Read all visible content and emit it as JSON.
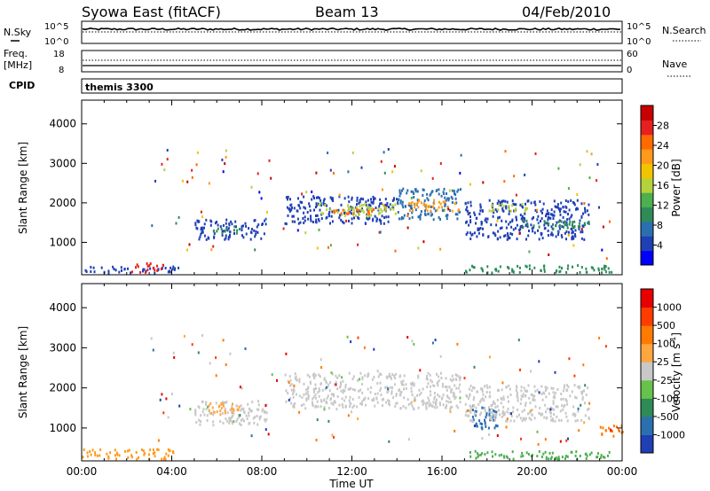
{
  "header": {
    "station": "Syowa East (fitACF)",
    "beam": "Beam 13",
    "date": "04/Feb/2010"
  },
  "noise_panel": {
    "left_label": "N.Sky",
    "right_label": "N.Search",
    "y_ticks_left": [
      "10^5",
      "10^0"
    ],
    "y_ticks_right": [
      "10^5",
      "10^0"
    ]
  },
  "freq_panel": {
    "left_label_line1": "Freq.",
    "left_label_line2": "[MHz]",
    "y_ticks_left": [
      "18",
      "8"
    ],
    "y_ticks_right": [
      "60",
      "0"
    ],
    "right_label": "Nave"
  },
  "cpid_panel": {
    "label": "CPID",
    "program": "themis 3300"
  },
  "chart_data": [
    {
      "type": "heatmap",
      "title": "",
      "xlabel": "",
      "ylabel": "Slant Range [km]",
      "x_ticks": [
        "00:00",
        "04:00",
        "08:00",
        "12:00",
        "16:00",
        "20:00",
        "00:00"
      ],
      "xlim_hours": [
        0,
        24
      ],
      "y_ticks": [
        "1000",
        "2000",
        "3000",
        "4000"
      ],
      "y_tick_values": [
        1000,
        2000,
        3000,
        4000
      ],
      "ylim": [
        180,
        4600
      ],
      "colorbar": {
        "label": "Power [dB]",
        "tick_labels": [
          "4",
          "8",
          "12",
          "16",
          "20",
          "24",
          "28"
        ],
        "colors": [
          "#0000ff",
          "#1f3fb5",
          "#2c6fb0",
          "#2e8b57",
          "#4caf50",
          "#b6d23a",
          "#f2c400",
          "#ff9a1a",
          "#ff6a00",
          "#e62020",
          "#c80000"
        ]
      },
      "regions": [
        {
          "t0": 0.0,
          "t1": 4.3,
          "r0": 250,
          "r1": 420,
          "color": "#1f3fb5"
        },
        {
          "t0": 2.2,
          "t1": 3.6,
          "r0": 260,
          "r1": 500,
          "color": "#e62020"
        },
        {
          "t0": 5.0,
          "t1": 8.2,
          "r0": 1100,
          "r1": 1600,
          "color": "#1f3fb5"
        },
        {
          "t0": 5.8,
          "t1": 7.0,
          "r0": 1250,
          "r1": 1450,
          "color": "#2e8b57"
        },
        {
          "t0": 9.0,
          "t1": 14.0,
          "r0": 1500,
          "r1": 2200,
          "color": "#1f3fb5"
        },
        {
          "t0": 10.5,
          "t1": 14.0,
          "r0": 1700,
          "r1": 2000,
          "color": "#b6d23a"
        },
        {
          "t0": 11.0,
          "t1": 13.0,
          "r0": 1750,
          "r1": 1900,
          "color": "#ff6a00"
        },
        {
          "t0": 14.0,
          "t1": 16.8,
          "r0": 1600,
          "r1": 2400,
          "color": "#2c6fb0"
        },
        {
          "t0": 14.5,
          "t1": 16.8,
          "r0": 1800,
          "r1": 2100,
          "color": "#ff9a1a"
        },
        {
          "t0": 17.0,
          "t1": 22.5,
          "r0": 1100,
          "r1": 2100,
          "color": "#1f3fb5"
        },
        {
          "t0": 18.0,
          "t1": 20.0,
          "r0": 1800,
          "r1": 2000,
          "color": "#b6d23a"
        },
        {
          "t0": 19.5,
          "t1": 22.5,
          "r0": 1400,
          "r1": 1600,
          "color": "#2e8b57"
        },
        {
          "t0": 17.0,
          "t1": 23.5,
          "r0": 260,
          "r1": 450,
          "color": "#2e8b57"
        }
      ]
    },
    {
      "type": "heatmap",
      "title": "",
      "xlabel": "Time UT",
      "ylabel": "Slant Range [km]",
      "x_ticks": [
        "00:00",
        "04:00",
        "08:00",
        "12:00",
        "16:00",
        "20:00",
        "00:00"
      ],
      "xlim_hours": [
        0,
        24
      ],
      "y_ticks": [
        "1000",
        "2000",
        "3000",
        "4000"
      ],
      "y_tick_values": [
        1000,
        2000,
        3000,
        4000
      ],
      "ylim": [
        180,
        4600
      ],
      "colorbar": {
        "label": "Velocity [m s",
        "label_sup": "-1",
        "label_end": "]",
        "tick_labels": [
          "1000",
          "500",
          "100",
          "25",
          "-25",
          "-100",
          "-500",
          "-1000"
        ],
        "colors": [
          "#1f3fb5",
          "#2c6fb0",
          "#2e8b57",
          "#66c24a",
          "#c8c8c8",
          "#ffa640",
          "#ff7a00",
          "#ff3c00",
          "#e60000"
        ]
      },
      "regions": [
        {
          "t0": 0.0,
          "t1": 4.2,
          "r0": 250,
          "r1": 500,
          "color": "#ff9a1a"
        },
        {
          "t0": 5.0,
          "t1": 8.2,
          "r0": 1100,
          "r1": 1700,
          "color": "#c8c8c8"
        },
        {
          "t0": 5.6,
          "t1": 7.0,
          "r0": 1300,
          "r1": 1650,
          "color": "#ffa640"
        },
        {
          "t0": 9.0,
          "t1": 16.8,
          "r0": 1500,
          "r1": 2400,
          "color": "#c8c8c8"
        },
        {
          "t0": 17.2,
          "t1": 18.5,
          "r0": 1000,
          "r1": 1600,
          "color": "#2c6fb0"
        },
        {
          "t0": 17.0,
          "t1": 22.5,
          "r0": 1200,
          "r1": 2100,
          "color": "#c8c8c8"
        },
        {
          "t0": 17.0,
          "t1": 23.5,
          "r0": 250,
          "r1": 450,
          "color": "#4caf50"
        },
        {
          "t0": 23.0,
          "t1": 24.0,
          "r0": 800,
          "r1": 1100,
          "color": "#ff7a00"
        }
      ]
    }
  ]
}
